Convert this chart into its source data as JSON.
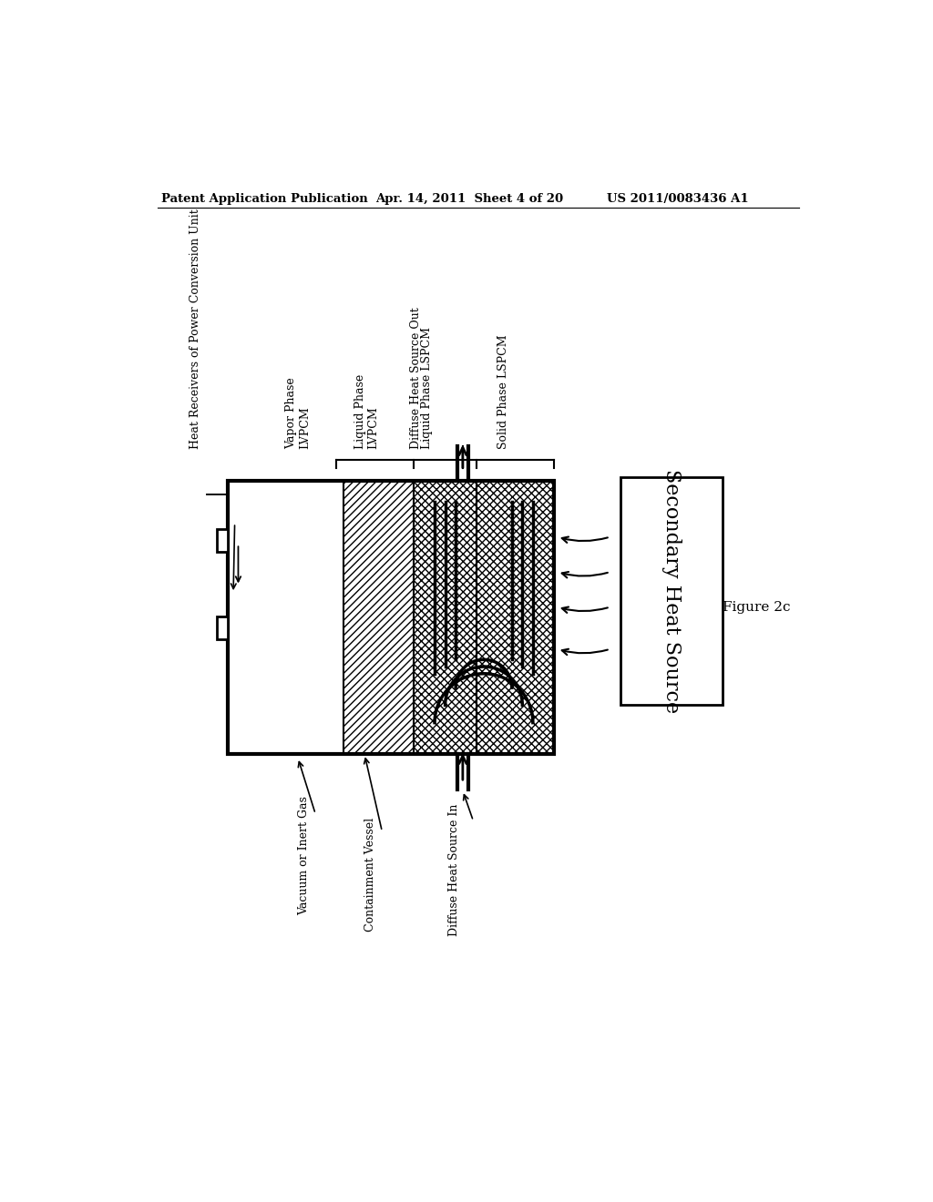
{
  "bg_color": "#ffffff",
  "header_left": "Patent Application Publication",
  "header_mid": "Apr. 14, 2011  Sheet 4 of 20",
  "header_right": "US 2011/0083436 A1",
  "figure_label": "Figure 2c",
  "labels": {
    "heat_receivers": "Heat Receivers of Power Conversion Unit",
    "vapor_phase": "Vapor Phase\nLVPCM",
    "liquid_phase": "Liquid Phase\nLVPCM",
    "liquid_phase_lspcm": "Liquid Phase LSPCM",
    "diffuse_out": "Diffuse Heat Source Out",
    "solid_phase_lspcm": "Solid Phase LSPCM",
    "vacuum": "Vacuum or Inert Gas",
    "containment": "Containment Vessel",
    "diffuse_in": "Diffuse Heat Source In",
    "secondary": "Secondary Heat Source"
  }
}
